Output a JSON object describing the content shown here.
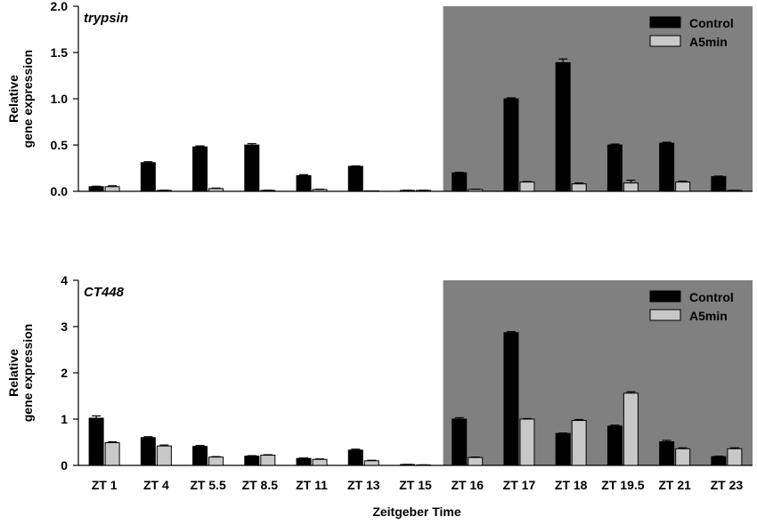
{
  "chart_data": [
    {
      "type": "bar",
      "title": "trypsin",
      "ylabel_lines": [
        "Relative",
        "gene expression"
      ],
      "ylim": [
        0,
        2.0
      ],
      "yticks": [
        "0.0",
        "0.5",
        "1.0",
        "1.5",
        "2.0"
      ],
      "dark_start_category": "ZT 16",
      "categories": [
        "ZT 1",
        "ZT 4",
        "ZT 5.5",
        "ZT 8.5",
        "ZT 11",
        "ZT 13",
        "ZT 15",
        "ZT 16",
        "ZT 17",
        "ZT 18",
        "ZT 19.5",
        "ZT 21",
        "ZT 23"
      ],
      "series": [
        {
          "name": "Control",
          "color": "#000000",
          "values": [
            0.05,
            0.31,
            0.48,
            0.5,
            0.17,
            0.27,
            0.01,
            0.2,
            1.0,
            1.39,
            0.5,
            0.52,
            0.16
          ],
          "errors": [
            0.005,
            0.01,
            0.01,
            0.015,
            0.01,
            0.005,
            0.002,
            0.005,
            0.01,
            0.04,
            0.01,
            0.01,
            0.005
          ]
        },
        {
          "name": "A5min",
          "color": "#c8c8c8",
          "values": [
            0.05,
            0.01,
            0.03,
            0.01,
            0.02,
            0.0,
            0.01,
            0.02,
            0.1,
            0.08,
            0.09,
            0.1,
            0.01
          ],
          "errors": [
            0.01,
            0.002,
            0.005,
            0.002,
            0.003,
            0.001,
            0.002,
            0.003,
            0.005,
            0.01,
            0.03,
            0.01,
            0.002
          ]
        }
      ],
      "legend": "top-right"
    },
    {
      "type": "bar",
      "title": "CT448",
      "ylabel_lines": [
        "Relative",
        "gene expression"
      ],
      "ylim": [
        0,
        4
      ],
      "yticks": [
        "0",
        "1",
        "2",
        "3",
        "4"
      ],
      "dark_start_category": "ZT 16",
      "categories": [
        "ZT 1",
        "ZT 4",
        "ZT 5.5",
        "ZT 8.5",
        "ZT 11",
        "ZT 13",
        "ZT 15",
        "ZT 16",
        "ZT 17",
        "ZT 18",
        "ZT 19.5",
        "ZT 21",
        "ZT 23"
      ],
      "series": [
        {
          "name": "Control",
          "color": "#000000",
          "values": [
            1.02,
            0.6,
            0.41,
            0.2,
            0.15,
            0.33,
            0.02,
            1.0,
            2.87,
            0.69,
            0.85,
            0.51,
            0.19
          ],
          "errors": [
            0.05,
            0.02,
            0.02,
            0.01,
            0.01,
            0.02,
            0.002,
            0.03,
            0.02,
            0.01,
            0.02,
            0.03,
            0.01
          ]
        },
        {
          "name": "A5min",
          "color": "#c8c8c8",
          "values": [
            0.49,
            0.42,
            0.18,
            0.22,
            0.13,
            0.1,
            0.01,
            0.17,
            1.0,
            0.97,
            1.56,
            0.36,
            0.36
          ],
          "errors": [
            0.02,
            0.02,
            0.01,
            0.01,
            0.01,
            0.01,
            0.002,
            0.01,
            0.01,
            0.02,
            0.03,
            0.02,
            0.02
          ]
        }
      ],
      "legend": "top-right"
    }
  ],
  "xlabel": "Zeitgeber Time"
}
